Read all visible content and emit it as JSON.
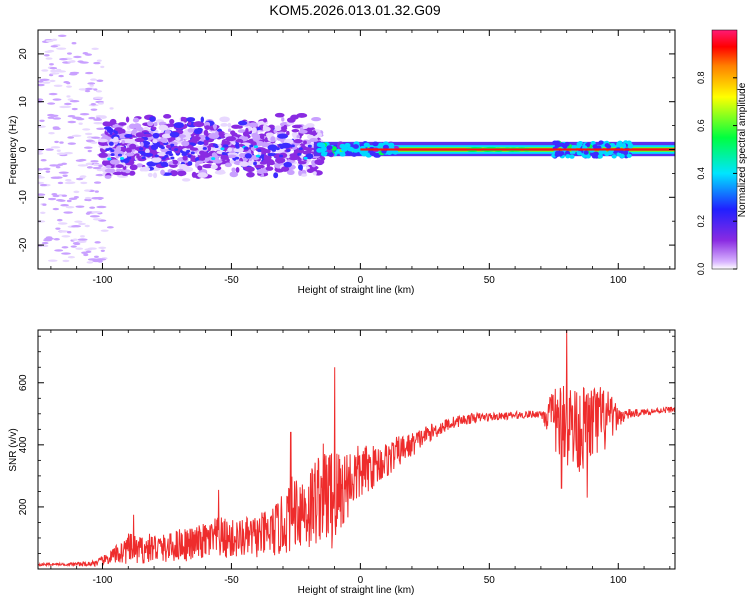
{
  "title": "KOM5.2026.013.01.32.G09",
  "colorbar": {
    "label": "Normalized spectral amplitude",
    "ticks": [
      "0.0",
      "0.2",
      "0.4",
      "0.6",
      "0.8"
    ],
    "tick_values": [
      0.0,
      0.2,
      0.4,
      0.6,
      0.8
    ]
  },
  "chart_data": [
    {
      "type": "heatmap",
      "xlabel": "Height of straight line (km)",
      "ylabel": "Frequency (Hz)",
      "xlim": [
        -125,
        122
      ],
      "ylim": [
        -25,
        25
      ],
      "xticks": [
        -100,
        -50,
        0,
        50,
        100
      ],
      "yticks": [
        -20,
        -10,
        0,
        10,
        20
      ],
      "colorscale": "rainbow (purple low, red high)",
      "features": [
        {
          "x_range": [
            -125,
            -100
          ],
          "freq_range": [
            -24,
            24
          ],
          "amplitude": 0.1,
          "note": "sparse scattered low-amplitude returns"
        },
        {
          "x_range": [
            -100,
            -15
          ],
          "freq_range": [
            -8,
            10
          ],
          "amplitude": 0.2,
          "note": "broad noisy purple/blue cloud"
        },
        {
          "x_range": [
            -18,
            122
          ],
          "freq_range": [
            -1.5,
            2
          ],
          "amplitude": 0.9,
          "note": "narrow band near 0 Hz, red core with green/cyan edges"
        },
        {
          "x_range": [
            75,
            105
          ],
          "freq_range": [
            -2,
            2.5
          ],
          "amplitude": 0.5,
          "note": "widened cyan/green segment"
        }
      ]
    },
    {
      "type": "line",
      "xlabel": "Height of straight line (km)",
      "ylabel": "SNR (v/v)",
      "xlim": [
        -125,
        122
      ],
      "ylim": [
        0,
        770
      ],
      "xticks": [
        -100,
        -50,
        0,
        50,
        100
      ],
      "yticks": [
        200,
        400,
        600
      ],
      "color": "#ee2c2c",
      "x": [
        -125,
        -115,
        -105,
        -100,
        -95,
        -90,
        -85,
        -80,
        -75,
        -70,
        -65,
        -60,
        -55,
        -50,
        -45,
        -40,
        -35,
        -30,
        -25,
        -20,
        -15,
        -10,
        -5,
        0,
        5,
        10,
        15,
        20,
        25,
        30,
        35,
        40,
        45,
        50,
        55,
        60,
        65,
        70,
        75,
        80,
        85,
        90,
        95,
        100,
        105,
        110,
        115,
        122
      ],
      "y": [
        15,
        15,
        16,
        25,
        45,
        65,
        60,
        70,
        65,
        80,
        80,
        90,
        100,
        95,
        100,
        105,
        115,
        140,
        200,
        190,
        250,
        220,
        280,
        310,
        330,
        350,
        380,
        400,
        430,
        450,
        470,
        480,
        488,
        490,
        492,
        495,
        498,
        500,
        480,
        470,
        450,
        470,
        480,
        490,
        500,
        505,
        510,
        515
      ],
      "noise_amp": [
        4,
        4,
        8,
        15,
        30,
        50,
        45,
        50,
        45,
        55,
        55,
        60,
        70,
        65,
        65,
        70,
        80,
        100,
        130,
        140,
        160,
        180,
        120,
        90,
        70,
        60,
        50,
        40,
        30,
        25,
        20,
        18,
        15,
        14,
        12,
        12,
        12,
        12,
        100,
        150,
        140,
        130,
        110,
        30,
        15,
        10,
        10,
        10
      ],
      "spikes": [
        [
          -10,
          650
        ],
        [
          -27,
          440
        ],
        [
          80,
          770
        ],
        [
          78,
          260
        ],
        [
          88,
          230
        ],
        [
          -88,
          175
        ],
        [
          -55,
          255
        ]
      ]
    }
  ]
}
